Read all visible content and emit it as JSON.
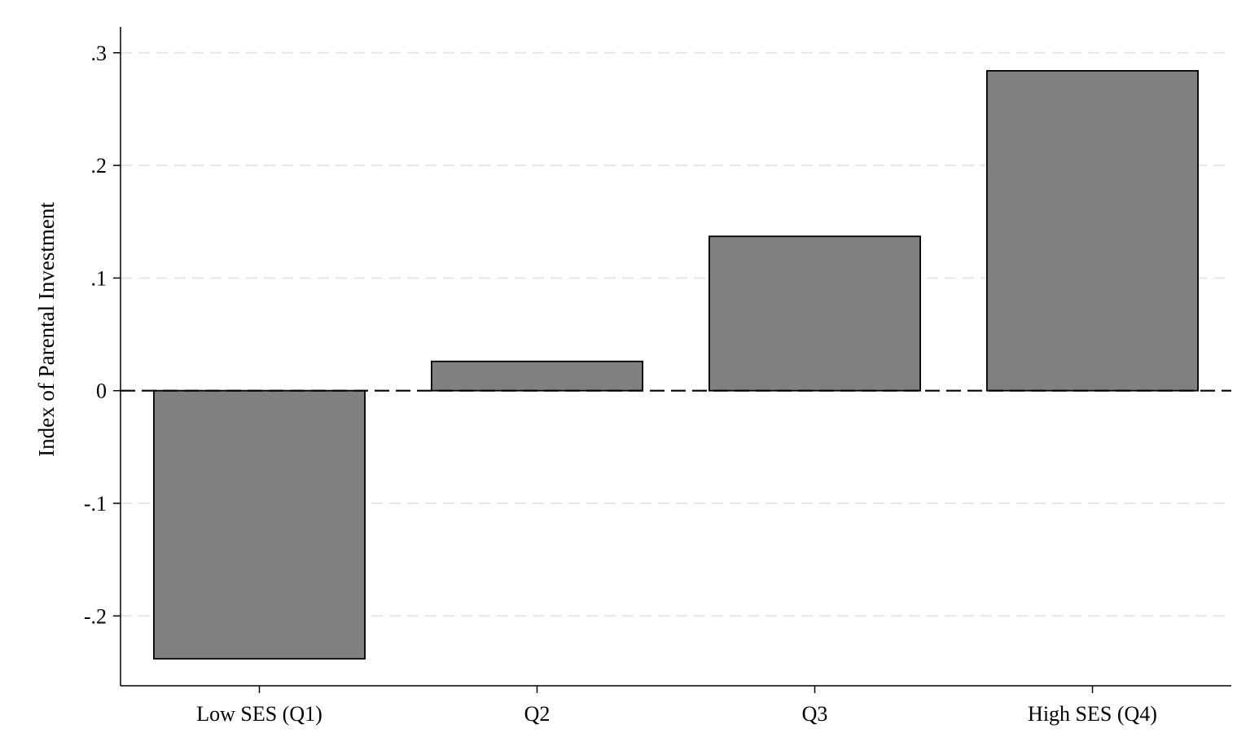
{
  "chart_data": {
    "type": "bar",
    "title": "",
    "xlabel": "",
    "ylabel": "Index of Parental Investment",
    "categories": [
      "Low SES (Q1)",
      "Q2",
      "Q3",
      "High SES (Q4)"
    ],
    "values": [
      -0.238,
      0.026,
      0.137,
      0.284
    ],
    "ylim": [
      -0.262,
      0.323
    ],
    "yticks": [
      -0.2,
      -0.1,
      0,
      0.1,
      0.2,
      0.3
    ],
    "ytick_labels": [
      "-.2",
      "-.1",
      "0",
      ".1",
      ".2",
      ".3"
    ],
    "grid": true,
    "reference_line": 0,
    "bar_color": "#808080",
    "bar_edge_color": "#000000",
    "grid_color": "#e6e6e6"
  }
}
